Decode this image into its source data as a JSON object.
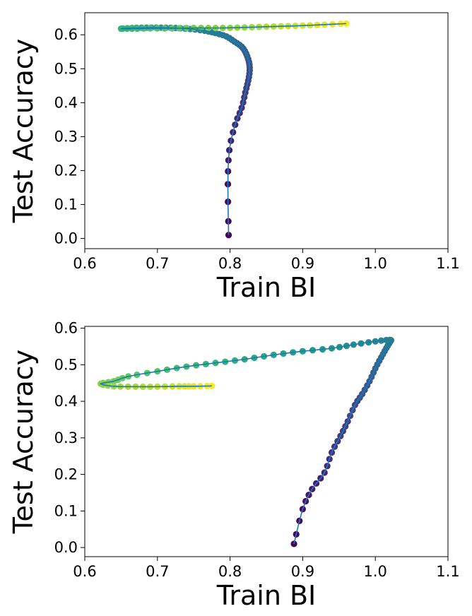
{
  "chart_data": [
    {
      "type": "scatter",
      "title": "",
      "xlabel": "Train BI",
      "ylabel": "Test Accuracy",
      "xlim": [
        0.6,
        1.1
      ],
      "ylim": [
        -0.03,
        0.665
      ],
      "xticks": [
        "0.6",
        "0.7",
        "0.8",
        "0.9",
        "1.0",
        "1.1"
      ],
      "yticks": [
        "0.0",
        "0.1",
        "0.2",
        "0.3",
        "0.4",
        "0.5",
        "0.6"
      ],
      "grid": false,
      "colormap": "viridis (early epochs dark purple, late epochs yellow)",
      "line_color": "#1f77b4",
      "series": [
        {
          "x": [
            0.798,
            0.797,
            0.799,
            0.807,
            0.816,
            0.821,
            0.825,
            0.827,
            0.826,
            0.822,
            0.816,
            0.806,
            0.795,
            0.78,
            0.765,
            0.745,
            0.725,
            0.705,
            0.685,
            0.665,
            0.65,
            0.665,
            0.69,
            0.72,
            0.75,
            0.78,
            0.81,
            0.84,
            0.87,
            0.9,
            0.93,
            0.96
          ],
          "y": [
            0.01,
            0.16,
            0.26,
            0.335,
            0.385,
            0.43,
            0.465,
            0.495,
            0.52,
            0.545,
            0.565,
            0.58,
            0.595,
            0.605,
            0.612,
            0.617,
            0.62,
            0.621,
            0.621,
            0.62,
            0.618,
            0.618,
            0.619,
            0.619,
            0.62,
            0.62,
            0.621,
            0.623,
            0.625,
            0.627,
            0.63,
            0.633
          ]
        }
      ]
    },
    {
      "type": "scatter",
      "title": "",
      "xlabel": "Train BI",
      "ylabel": "Test Accuracy",
      "xlim": [
        0.6,
        1.1
      ],
      "ylim": [
        -0.025,
        0.605
      ],
      "xticks": [
        "0.6",
        "0.7",
        "0.8",
        "0.9",
        "1.0",
        "1.1"
      ],
      "yticks": [
        "0.0",
        "0.1",
        "0.2",
        "0.3",
        "0.4",
        "0.5",
        "0.6"
      ],
      "grid": false,
      "colormap": "viridis (early epochs dark purple, late epochs yellow)",
      "line_color": "#1f77b4",
      "series": [
        {
          "x": [
            0.888,
            0.9,
            0.913,
            0.93,
            0.94,
            0.952,
            0.962,
            0.972,
            0.982,
            0.992,
            1.0,
            1.008,
            1.015,
            1.02,
            1.02,
            1.0,
            0.97,
            0.94,
            0.9,
            0.86,
            0.82,
            0.78,
            0.74,
            0.7,
            0.66,
            0.64,
            0.622,
            0.64,
            0.67,
            0.7,
            0.73,
            0.75,
            0.775
          ],
          "y": [
            0.01,
            0.105,
            0.16,
            0.205,
            0.26,
            0.305,
            0.345,
            0.39,
            0.42,
            0.455,
            0.49,
            0.52,
            0.545,
            0.562,
            0.568,
            0.564,
            0.555,
            0.545,
            0.537,
            0.527,
            0.515,
            0.505,
            0.495,
            0.482,
            0.468,
            0.455,
            0.448,
            0.441,
            0.44,
            0.44,
            0.441,
            0.441,
            0.442
          ]
        }
      ]
    }
  ]
}
